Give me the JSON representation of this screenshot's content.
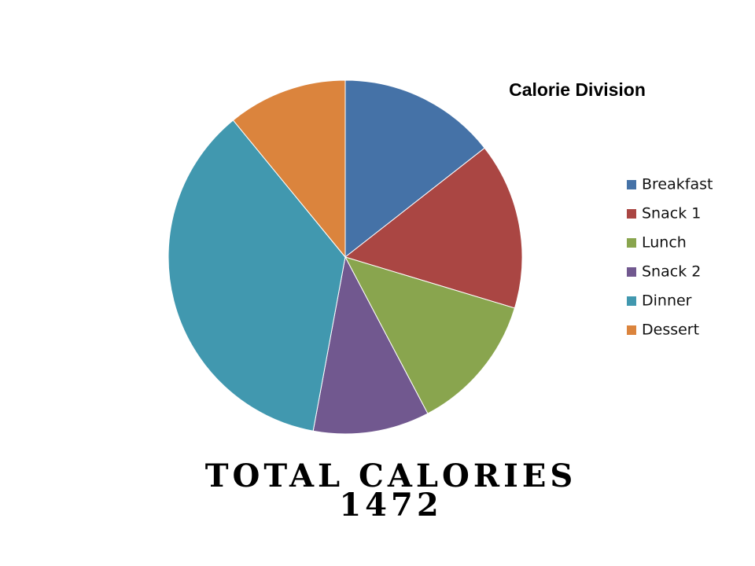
{
  "chart_data": {
    "type": "pie",
    "title": "Calorie Division",
    "categories": [
      "Breakfast",
      "Snack 1",
      "Lunch",
      "Snack 2",
      "Dinner",
      "Dessert"
    ],
    "values": [
      14.4,
      15.2,
      12.6,
      10.6,
      36.1,
      10.9
    ],
    "colors": [
      "#4572a7",
      "#aa4643",
      "#89a54e",
      "#71588f",
      "#4198af",
      "#db843d"
    ],
    "legend": "right",
    "annotations": [
      "TOTAL CALORIES",
      "1472"
    ]
  }
}
